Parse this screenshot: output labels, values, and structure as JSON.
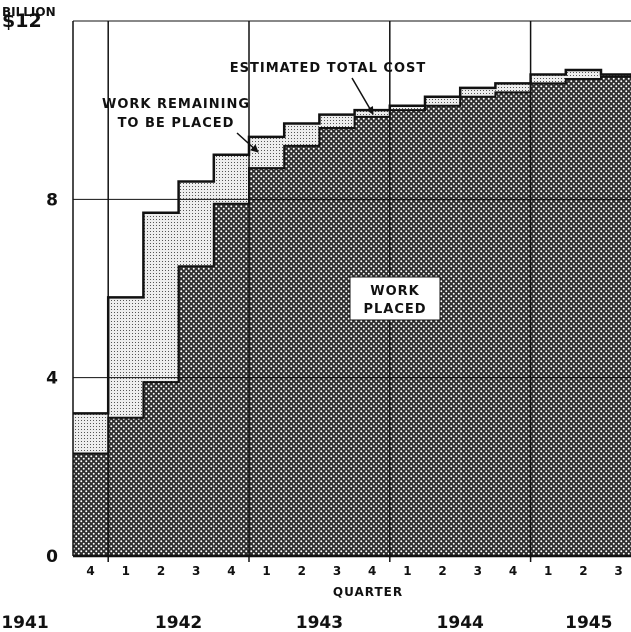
{
  "chart_data": {
    "type": "area",
    "title": "",
    "unit_label_top": "BILLION",
    "y_currency_prefix": "$",
    "xlabel": "QUARTER",
    "ylabel": "",
    "ylim": [
      0,
      12
    ],
    "yticks": [
      0,
      4,
      8,
      12
    ],
    "quarters": [
      "4",
      "1",
      "2",
      "3",
      "4",
      "1",
      "2",
      "3",
      "4",
      "1",
      "2",
      "3",
      "4",
      "1",
      "2",
      "3"
    ],
    "years": [
      "1941",
      "1942",
      "1943",
      "1944",
      "1945"
    ],
    "series": [
      {
        "name": "ESTIMATED TOTAL COST",
        "values": [
          3.2,
          5.8,
          7.7,
          8.4,
          9.0,
          9.4,
          9.7,
          9.9,
          10.0,
          10.1,
          10.3,
          10.5,
          10.6,
          10.8,
          10.9,
          10.8
        ]
      },
      {
        "name": "WORK PLACED",
        "values": [
          2.3,
          3.1,
          3.9,
          6.5,
          7.9,
          8.7,
          9.2,
          9.6,
          9.85,
          10.0,
          10.1,
          10.3,
          10.4,
          10.6,
          10.7,
          10.75
        ]
      }
    ],
    "annotations": {
      "remaining": [
        "WORK REMAINING",
        "TO BE PLACED"
      ],
      "placed": [
        "WORK",
        "PLACED"
      ]
    },
    "grid": true
  }
}
